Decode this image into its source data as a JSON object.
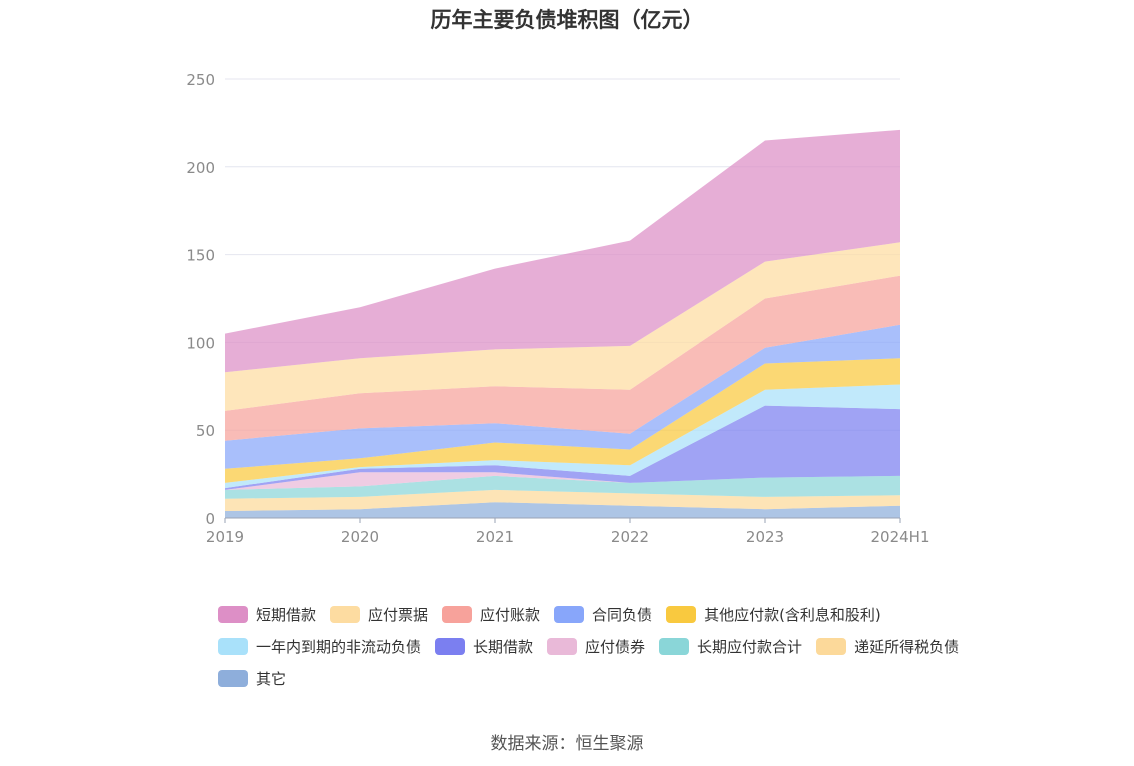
{
  "chart_data": {
    "type": "area",
    "stacked": true,
    "title": "历年主要负债堆积图（亿元）",
    "categories": [
      "2019",
      "2020",
      "2021",
      "2022",
      "2023",
      "2024H1"
    ],
    "y_ticks": [
      "0",
      "50",
      "100",
      "150",
      "200",
      "250"
    ],
    "ylim": [
      0,
      250
    ],
    "grid": true,
    "legend_position": "bottom",
    "series": [
      {
        "name": "其它",
        "color": "#8eaedb",
        "values": [
          4,
          5,
          9,
          7,
          5,
          7
        ]
      },
      {
        "name": "递延所得税负债",
        "color": "#fcd99a",
        "values": [
          7,
          7,
          7,
          7,
          7,
          6
        ]
      },
      {
        "name": "长期应付款合计",
        "color": "#8ad6d8",
        "values": [
          5,
          6,
          8,
          6,
          11,
          11
        ]
      },
      {
        "name": "应付债券",
        "color": "#e9b9d8",
        "values": [
          0,
          8,
          2,
          0,
          0,
          0
        ]
      },
      {
        "name": "长期借款",
        "color": "#7b7ff0",
        "values": [
          1,
          2,
          4,
          4,
          41,
          38
        ]
      },
      {
        "name": "一年内到期的非流动负债",
        "color": "#a9e1fa",
        "values": [
          3,
          1,
          3,
          6,
          9,
          14
        ]
      },
      {
        "name": "其他应付款(含利息和股利)",
        "color": "#f9c93f",
        "values": [
          8,
          5,
          10,
          9,
          15,
          15
        ]
      },
      {
        "name": "合同负债",
        "color": "#88a6fa",
        "values": [
          16,
          17,
          11,
          9,
          9,
          19
        ]
      },
      {
        "name": "应付账款",
        "color": "#f7a29b",
        "values": [
          17,
          20,
          21,
          25,
          28,
          28
        ]
      },
      {
        "name": "应付票据",
        "color": "#fddca1",
        "values": [
          22,
          20,
          21,
          25,
          21,
          19
        ]
      },
      {
        "name": "短期借款",
        "color": "#dd8fc6",
        "values": [
          22,
          29,
          46,
          60,
          69,
          64
        ]
      }
    ],
    "source": "数据来源：恒生聚源"
  },
  "legend": [
    {
      "name": "短期借款",
      "color": "#dd8fc6"
    },
    {
      "name": "应付票据",
      "color": "#fddca1"
    },
    {
      "name": "应付账款",
      "color": "#f7a29b"
    },
    {
      "name": "合同负债",
      "color": "#88a6fa"
    },
    {
      "name": "其他应付款(含利息和股利)",
      "color": "#f9c93f"
    },
    {
      "name": "一年内到期的非流动负债",
      "color": "#a9e1fa"
    },
    {
      "name": "长期借款",
      "color": "#7b7ff0"
    },
    {
      "name": "应付债券",
      "color": "#e9b9d8"
    },
    {
      "name": "长期应付款合计",
      "color": "#8ad6d8"
    },
    {
      "name": "递延所得税负债",
      "color": "#fcd99a"
    },
    {
      "name": "其它",
      "color": "#8eaedb"
    }
  ]
}
